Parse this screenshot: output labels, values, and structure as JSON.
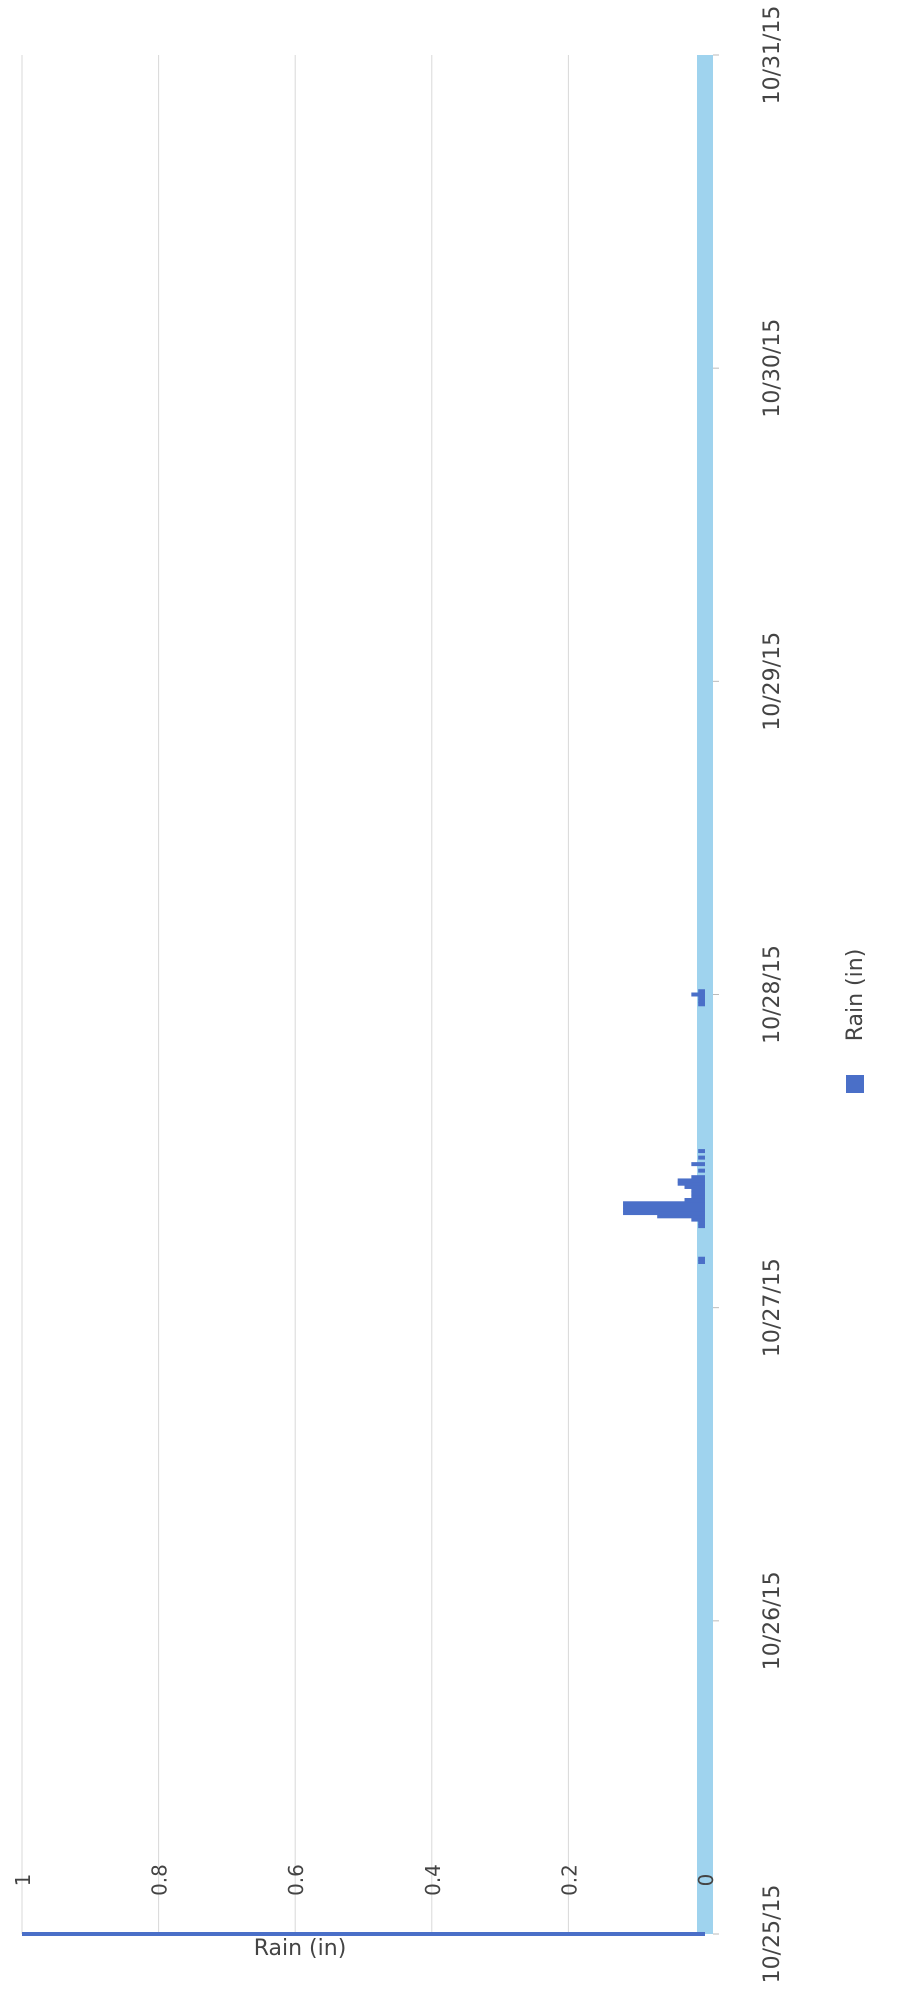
{
  "chart_data": {
    "type": "bar",
    "orientation": "rotated-90-cw",
    "ylabel": "Rain (in)",
    "ylim": [
      0,
      1
    ],
    "yticks": [
      0,
      0.2,
      0.4,
      0.6,
      0.8,
      1
    ],
    "ytick_labels": [
      "0",
      "0.2",
      "0.4",
      "0.6",
      "0.8",
      "1"
    ],
    "xlim": [
      "10/25/15 00:00",
      "10/31/15 00:00"
    ],
    "xtick_labels": [
      "10/25/15",
      "10/26/15",
      "10/27/15",
      "10/28/15",
      "10/29/15",
      "10/30/15",
      "10/31/15"
    ],
    "grid": true,
    "legend": {
      "placement": "bottom",
      "entries": [
        {
          "name": "Rain (in)",
          "color": "#4a6fc8"
        }
      ]
    },
    "colors": {
      "bar": "#4a6fc8",
      "baseline_band": "#9fd3ee",
      "grid": "#d8d8d8",
      "axis_text": "#444444"
    },
    "series": [
      {
        "name": "Rain (in)",
        "points": [
          {
            "t": "10/25/15 00:00",
            "v": 1.0
          },
          {
            "t": "10/27/15 03:30",
            "v": 0.01
          },
          {
            "t": "10/27/15 03:45",
            "v": 0.01
          },
          {
            "t": "10/27/15 06:15",
            "v": 0.01
          },
          {
            "t": "10/27/15 06:30",
            "v": 0.01
          },
          {
            "t": "10/27/15 06:45",
            "v": 0.02
          },
          {
            "t": "10/27/15 07:00",
            "v": 0.07
          },
          {
            "t": "10/27/15 07:15",
            "v": 0.12
          },
          {
            "t": "10/27/15 07:30",
            "v": 0.12
          },
          {
            "t": "10/27/15 07:45",
            "v": 0.12
          },
          {
            "t": "10/27/15 08:00",
            "v": 0.12
          },
          {
            "t": "10/27/15 08:15",
            "v": 0.03
          },
          {
            "t": "10/27/15 08:30",
            "v": 0.02
          },
          {
            "t": "10/27/15 08:45",
            "v": 0.02
          },
          {
            "t": "10/27/15 09:00",
            "v": 0.02
          },
          {
            "t": "10/27/15 09:15",
            "v": 0.03
          },
          {
            "t": "10/27/15 09:30",
            "v": 0.04
          },
          {
            "t": "10/27/15 09:45",
            "v": 0.04
          },
          {
            "t": "10/27/15 10:00",
            "v": 0.02
          },
          {
            "t": "10/27/15 10:30",
            "v": 0.01
          },
          {
            "t": "10/27/15 11:00",
            "v": 0.02
          },
          {
            "t": "10/27/15 11:30",
            "v": 0.01
          },
          {
            "t": "10/27/15 12:00",
            "v": 0.01
          },
          {
            "t": "10/27/15 23:15",
            "v": 0.01
          },
          {
            "t": "10/27/15 23:30",
            "v": 0.01
          },
          {
            "t": "10/27/15 23:45",
            "v": 0.01
          },
          {
            "t": "10/28/15 00:00",
            "v": 0.02
          },
          {
            "t": "10/28/15 00:15",
            "v": 0.01
          }
        ]
      }
    ]
  }
}
